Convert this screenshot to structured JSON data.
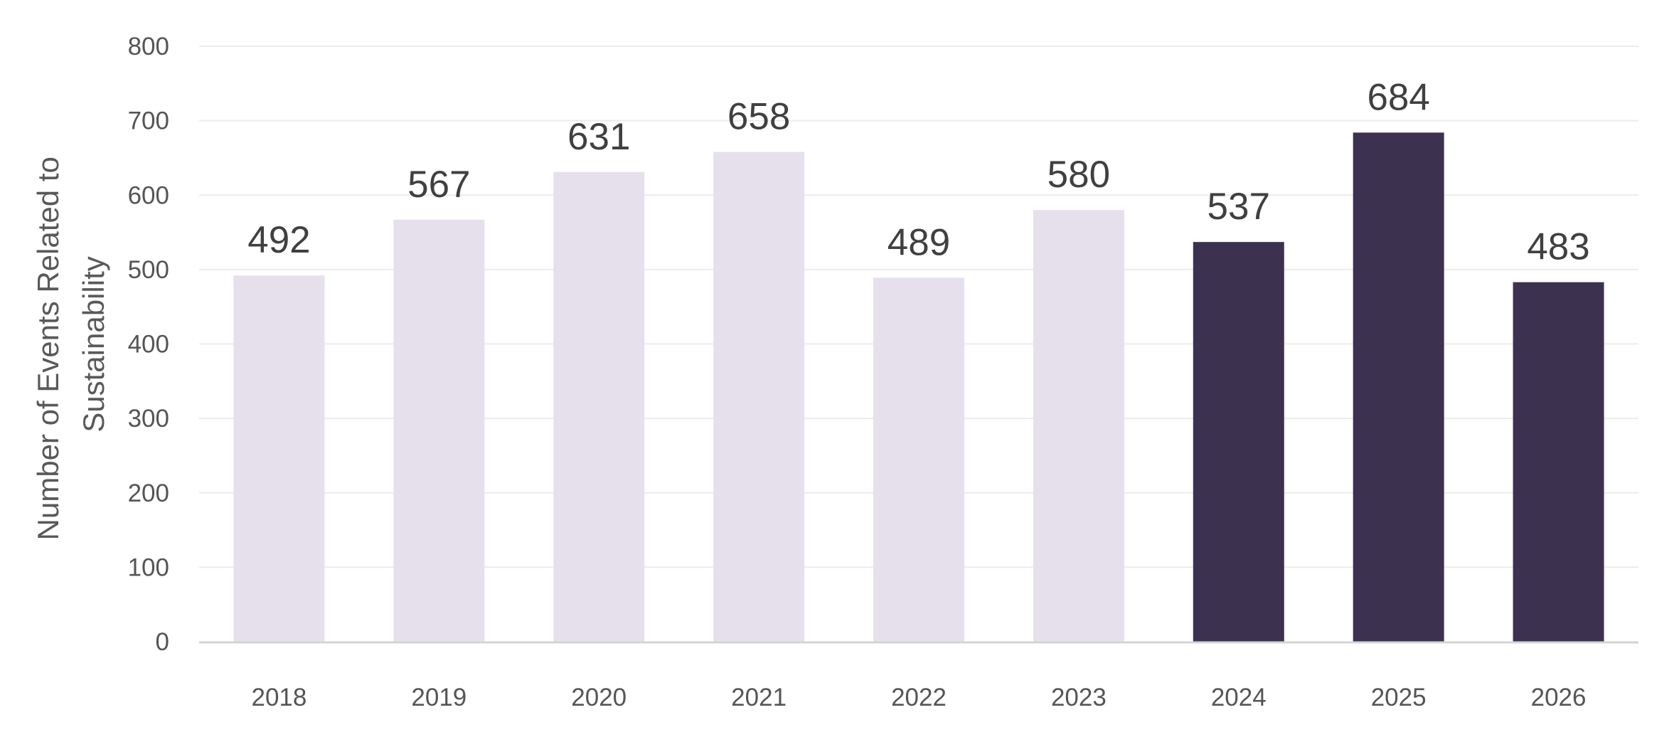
{
  "chart_data": {
    "type": "bar",
    "title": "",
    "xlabel": "",
    "ylabel_lines": [
      "Number of Events Related to",
      "Sustainability"
    ],
    "categories": [
      "2018",
      "2019",
      "2020",
      "2021",
      "2022",
      "2023",
      "2024",
      "2025",
      "2026"
    ],
    "values": [
      492,
      567,
      631,
      658,
      489,
      580,
      537,
      684,
      483
    ],
    "ylim": [
      0,
      800
    ],
    "yticks": [
      0,
      100,
      200,
      300,
      400,
      500,
      600,
      700,
      800
    ],
    "grid": true,
    "legend": "none",
    "data_labels": true,
    "colors": {
      "light_bar": "#e6e0ec",
      "dark_bar": "#3d3150"
    },
    "highlighted_categories": [
      "2024",
      "2025",
      "2026"
    ]
  }
}
